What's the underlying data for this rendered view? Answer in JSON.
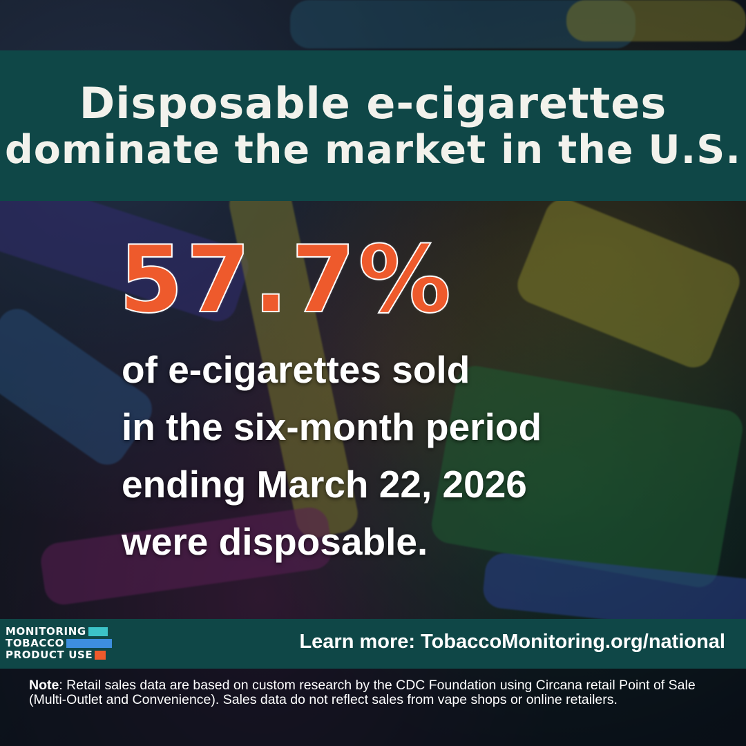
{
  "title": {
    "line1": "Disposable e-cigarettes",
    "line2": "dominate the market in the U.S."
  },
  "statistic": {
    "value": "57.7%",
    "lines": [
      "of e-cigarettes sold",
      "in the six-month period",
      "ending March 22, 2026",
      "were disposable."
    ]
  },
  "logo": {
    "words": [
      "MONITORING",
      "TOBACCO",
      "PRODUCT USE"
    ],
    "block_colors": [
      "#3cc3c8",
      "#3d8ede",
      "#ee5a2c"
    ]
  },
  "footer": {
    "learn_more": "Learn more: TobaccoMonitoring.org/national"
  },
  "note": {
    "label": "Note",
    "text": ": Retail sales data are based on custom research by the CDC Foundation using Circana retail Point of Sale (Multi-Outlet and Convenience). Sales data do not reflect sales from vape shops or online retailers."
  },
  "colors": {
    "banner": "#0f4747",
    "stat_accent": "#ee5a2c",
    "text": "#ffffff"
  }
}
